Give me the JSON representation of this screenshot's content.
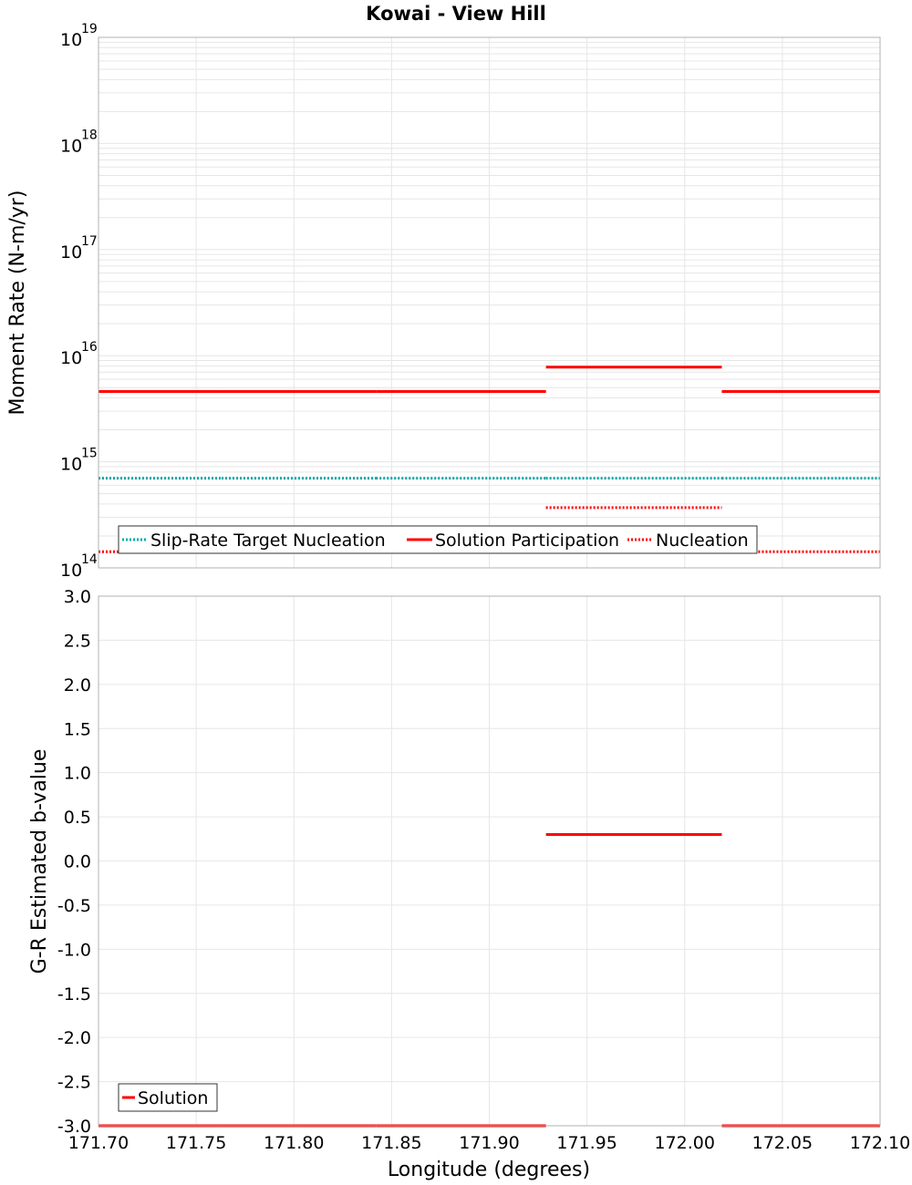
{
  "chart_data": [
    {
      "type": "line",
      "title": "Kowai - View Hill",
      "ylabel": "Moment Rate (N-m/yr)",
      "xlabel": "",
      "yscale": "log",
      "ylim": [
        100000000000000.0,
        1e+19
      ],
      "xlim": [
        171.7,
        172.1
      ],
      "y_tick_exponents": [
        "14",
        "15",
        "16",
        "17",
        "18",
        "19"
      ],
      "y_tick_base": "10",
      "grid": true,
      "legend_position": "bottom-left",
      "series": [
        {
          "name": "Slip-Rate Target Nucleation",
          "color": "#00aaaa",
          "style": "dotted",
          "segments": [
            [
              171.7,
              171.763,
              700000000000000.0
            ],
            [
              171.763,
              171.842,
              700000000000000.0
            ],
            [
              171.842,
              171.929,
              700000000000000.0
            ],
            [
              171.929,
              172.019,
              700000000000000.0
            ],
            [
              172.019,
              172.1,
              700000000000000.0
            ]
          ]
        },
        {
          "name": "Solution Participation",
          "color": "#ff0000",
          "style": "solid",
          "segments": [
            [
              171.7,
              171.763,
              4600000000000000.0
            ],
            [
              171.763,
              171.842,
              4600000000000000.0
            ],
            [
              171.842,
              171.929,
              4600000000000000.0
            ],
            [
              171.929,
              172.019,
              7800000000000000.0
            ],
            [
              172.019,
              172.1,
              4600000000000000.0
            ]
          ]
        },
        {
          "name": "Nucleation",
          "color": "#ff0000",
          "style": "dotted",
          "segments": [
            [
              171.7,
              171.763,
              142000000000000.0
            ],
            [
              171.763,
              171.842,
              142000000000000.0
            ],
            [
              171.842,
              171.929,
              142000000000000.0
            ],
            [
              171.929,
              172.019,
              370000000000000.0
            ],
            [
              172.019,
              172.1,
              142000000000000.0
            ]
          ]
        }
      ]
    },
    {
      "type": "line",
      "title": "",
      "ylabel": "G-R Estimated b-value",
      "xlabel": "Longitude (degrees)",
      "ylim": [
        -3.0,
        3.0
      ],
      "xlim": [
        171.7,
        172.1
      ],
      "y_ticks": [
        "3.0",
        "2.5",
        "2.0",
        "1.5",
        "1.0",
        "0.5",
        "0.0",
        "-0.5",
        "-1.0",
        "-1.5",
        "-2.0",
        "-2.5",
        "-3.0"
      ],
      "x_ticks": [
        "171.70",
        "171.75",
        "171.80",
        "171.85",
        "171.90",
        "171.95",
        "172.00",
        "172.05",
        "172.10"
      ],
      "grid": true,
      "legend_position": "bottom-left",
      "series": [
        {
          "name": "Solution",
          "color": "#ff0000",
          "style": "solid",
          "segments": [
            [
              171.7,
              171.763,
              -3.0
            ],
            [
              171.763,
              171.842,
              -3.0
            ],
            [
              171.842,
              171.929,
              -3.0
            ],
            [
              171.929,
              172.019,
              0.3
            ],
            [
              172.019,
              172.1,
              -3.0
            ]
          ]
        }
      ]
    }
  ]
}
